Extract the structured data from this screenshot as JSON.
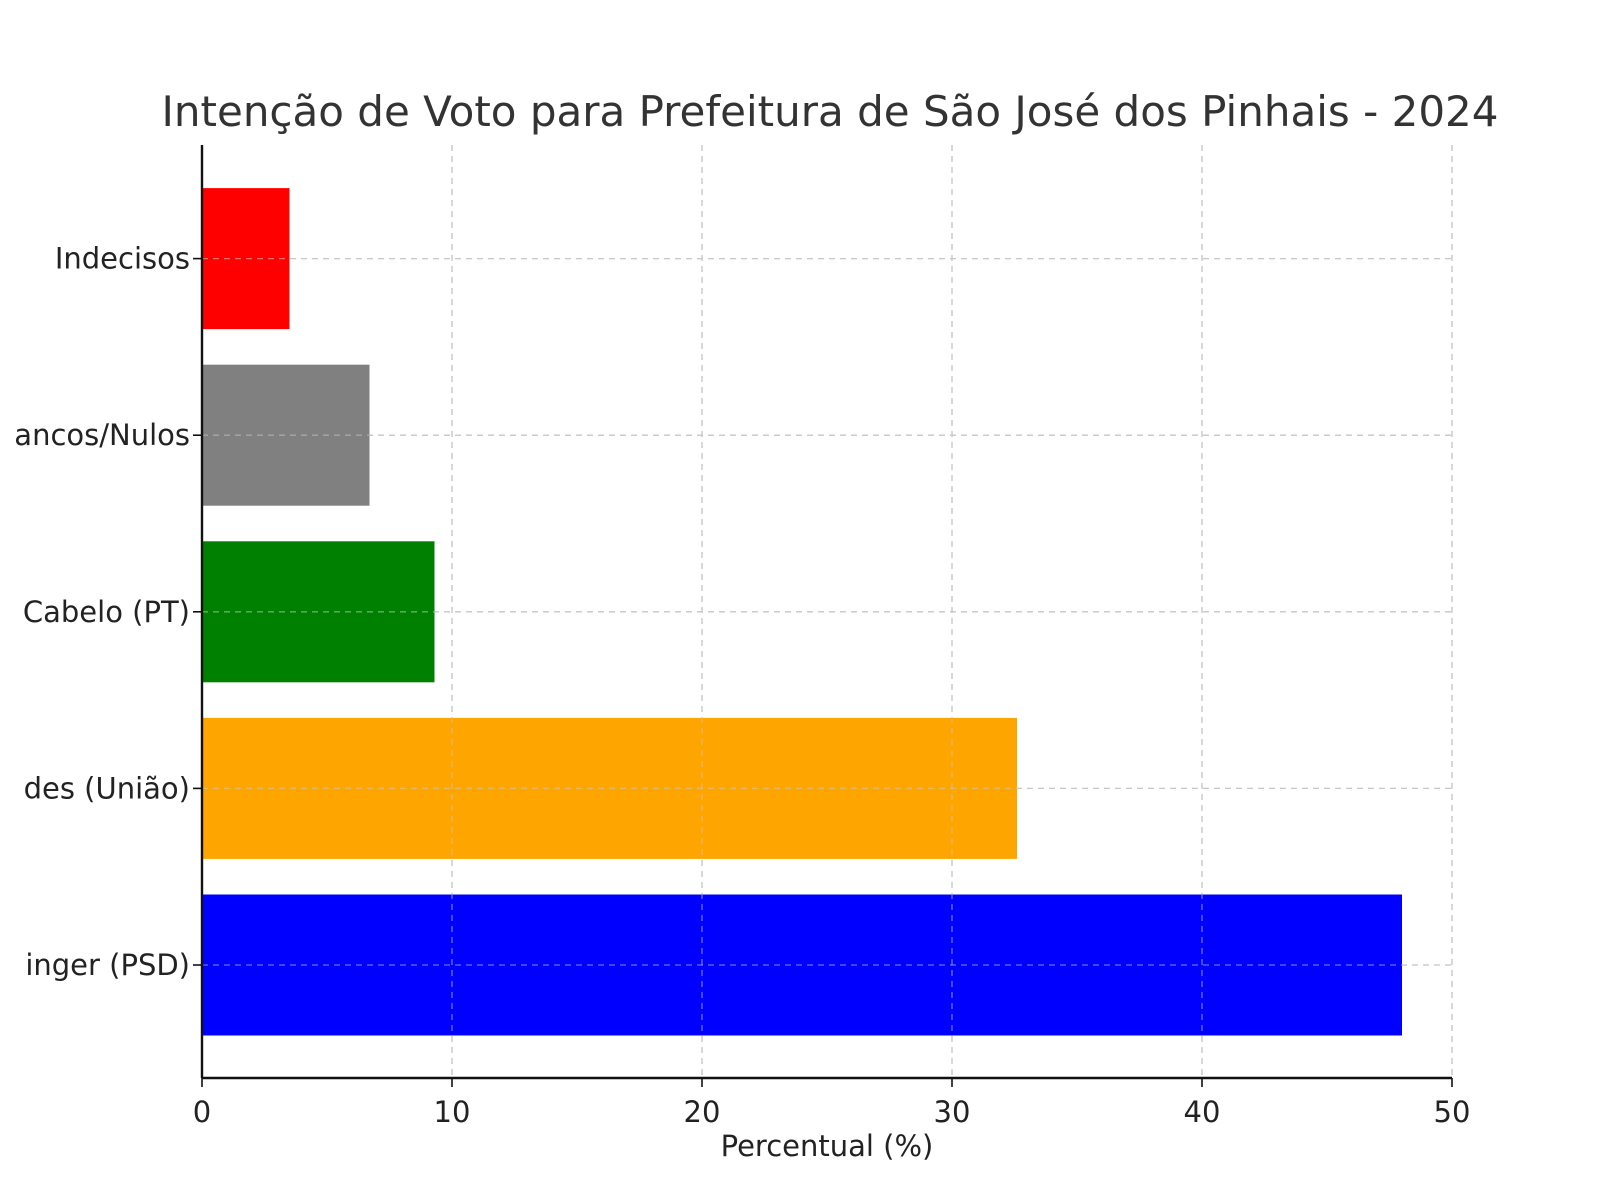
{
  "chart_data": {
    "type": "bar",
    "orientation": "horizontal",
    "title": "Intenção de Voto para Prefeitura de São José dos Pinhais - 2024",
    "xlabel": "Percentual (%)",
    "ylabel": "",
    "xlim": [
      0,
      50
    ],
    "xticks": [
      "0",
      "10",
      "20",
      "30",
      "40",
      "50"
    ],
    "grid": true,
    "categories": [
      "inger (PSD)",
      "des (União)",
      "Cabelo (PT)",
      "ancos/Nulos",
      "Indecisos"
    ],
    "values": [
      48.0,
      32.6,
      9.3,
      6.7,
      3.5
    ],
    "colors": [
      "#0000ff",
      "#ffa500",
      "#008000",
      "#808080",
      "#ff0000"
    ]
  }
}
